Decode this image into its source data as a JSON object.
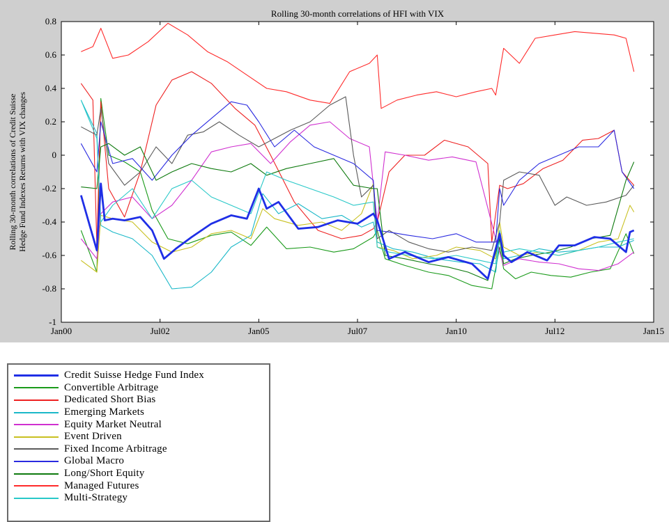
{
  "chart_data": {
    "type": "line",
    "title": "Rolling 30-month correlations of HFI with VIX",
    "ylabel_lines": [
      "Rolling 30-month correlations of Credit Suisse",
      "Hedge Fund Indexes Returns with VIX changes"
    ],
    "xlabel": "",
    "xlim": [
      2000.0,
      2015.0
    ],
    "ylim": [
      -1.0,
      0.8
    ],
    "xticks": [
      {
        "value": 2000.0,
        "label": "Jan00"
      },
      {
        "value": 2002.5,
        "label": "Jul02"
      },
      {
        "value": 2005.0,
        "label": "Jan05"
      },
      {
        "value": 2007.5,
        "label": "Jul07"
      },
      {
        "value": 2010.0,
        "label": "Jan10"
      },
      {
        "value": 2012.5,
        "label": "Jul12"
      },
      {
        "value": 2015.0,
        "label": "Jan15"
      }
    ],
    "yticks": [
      {
        "value": -1.0,
        "label": "-1"
      },
      {
        "value": -0.8,
        "label": "-0.8"
      },
      {
        "value": -0.6,
        "label": "-0.6"
      },
      {
        "value": -0.4,
        "label": "-0.4"
      },
      {
        "value": -0.2,
        "label": "-0.2"
      },
      {
        "value": 0.0,
        "label": "0"
      },
      {
        "value": 0.2,
        "label": "0.2"
      },
      {
        "value": 0.4,
        "label": "0.4"
      },
      {
        "value": 0.6,
        "label": "0.6"
      },
      {
        "value": 0.8,
        "label": "0.8"
      }
    ],
    "grid": false,
    "legend_position": "below",
    "series": [
      {
        "name": "Credit Suisse Hedge Fund Index",
        "color": "#1f2fe6",
        "bold": true,
        "x": [
          2000.5,
          2000.9,
          2001.0,
          2001.1,
          2001.3,
          2001.6,
          2002.0,
          2002.3,
          2002.6,
          2002.9,
          2003.3,
          2003.8,
          2004.3,
          2004.7,
          2005.0,
          2005.2,
          2005.5,
          2006.0,
          2006.5,
          2007.0,
          2007.5,
          2007.9,
          2008.0,
          2008.3,
          2008.7,
          2009.3,
          2009.8,
          2010.4,
          2010.8,
          2011.1,
          2011.2,
          2011.4,
          2011.8,
          2012.3,
          2012.6,
          2013.0,
          2013.5,
          2013.9,
          2014.3,
          2014.4,
          2014.5
        ],
        "y": [
          -0.24,
          -0.57,
          -0.17,
          -0.39,
          -0.38,
          -0.39,
          -0.37,
          -0.45,
          -0.62,
          -0.56,
          -0.49,
          -0.41,
          -0.36,
          -0.38,
          -0.2,
          -0.32,
          -0.28,
          -0.44,
          -0.43,
          -0.39,
          -0.41,
          -0.35,
          -0.39,
          -0.62,
          -0.58,
          -0.64,
          -0.61,
          -0.65,
          -0.74,
          -0.47,
          -0.6,
          -0.64,
          -0.58,
          -0.63,
          -0.54,
          -0.54,
          -0.49,
          -0.5,
          -0.58,
          -0.46,
          -0.45
        ]
      },
      {
        "name": "Convertible Arbitrage",
        "color": "#1a9a1a",
        "x": [
          2000.5,
          2000.9,
          2001.0,
          2001.2,
          2001.6,
          2002.0,
          2002.3,
          2002.7,
          2003.2,
          2003.8,
          2004.3,
          2004.8,
          2005.2,
          2005.7,
          2006.3,
          2006.9,
          2007.4,
          2007.9,
          2008.0,
          2008.2,
          2008.7,
          2009.3,
          2009.8,
          2010.4,
          2010.9,
          2011.1,
          2011.2,
          2011.5,
          2011.9,
          2012.4,
          2012.9,
          2013.4,
          2013.9,
          2014.3,
          2014.5
        ],
        "y": [
          -0.45,
          -0.7,
          0.34,
          0.0,
          -0.04,
          -0.1,
          -0.33,
          -0.5,
          -0.53,
          -0.48,
          -0.46,
          -0.54,
          -0.43,
          -0.56,
          -0.55,
          -0.58,
          -0.56,
          -0.49,
          -0.45,
          -0.62,
          -0.66,
          -0.7,
          -0.72,
          -0.78,
          -0.8,
          -0.55,
          -0.68,
          -0.74,
          -0.7,
          -0.72,
          -0.73,
          -0.7,
          -0.68,
          -0.47,
          -0.59
        ]
      },
      {
        "name": "Dedicated Short Bias",
        "color": "#ee2020",
        "x": [
          2000.5,
          2000.8,
          2000.9,
          2001.0,
          2001.2,
          2001.6,
          2002.0,
          2002.4,
          2002.8,
          2003.3,
          2003.8,
          2004.4,
          2004.9,
          2005.3,
          2005.9,
          2006.5,
          2007.1,
          2007.6,
          2007.9,
          2008.0,
          2008.3,
          2008.7,
          2009.2,
          2009.7,
          2010.3,
          2010.8,
          2010.9,
          2011.1,
          2011.3,
          2011.7,
          2012.2,
          2012.7,
          2013.2,
          2013.6,
          2014.0,
          2014.2,
          2014.5
        ],
        "y": [
          0.43,
          0.33,
          -0.55,
          0.32,
          -0.2,
          -0.37,
          -0.1,
          0.3,
          0.45,
          0.5,
          0.43,
          0.28,
          0.18,
          0.0,
          -0.28,
          -0.45,
          -0.5,
          -0.48,
          -0.44,
          -0.4,
          -0.1,
          0.0,
          0.0,
          0.09,
          0.05,
          -0.05,
          -0.52,
          -0.18,
          -0.2,
          -0.17,
          -0.08,
          -0.03,
          0.09,
          0.1,
          0.15,
          -0.1,
          -0.18
        ]
      },
      {
        "name": "Emerging Markets",
        "color": "#1ab8c8",
        "x": [
          2000.5,
          2000.9,
          2001.0,
          2001.3,
          2001.8,
          2002.3,
          2002.8,
          2003.3,
          2003.8,
          2004.3,
          2004.8,
          2005.1,
          2005.5,
          2006.0,
          2006.6,
          2007.1,
          2007.6,
          2007.9,
          2008.0,
          2008.4,
          2008.9,
          2009.5,
          2010.1,
          2010.6,
          2011.0,
          2011.1,
          2011.2,
          2011.6,
          2012.1,
          2012.6,
          2013.1,
          2013.6,
          2014.1,
          2014.5
        ],
        "y": [
          0.33,
          0.13,
          -0.42,
          -0.46,
          -0.5,
          -0.6,
          -0.8,
          -0.79,
          -0.7,
          -0.55,
          -0.48,
          -0.23,
          -0.35,
          -0.29,
          -0.38,
          -0.36,
          -0.43,
          -0.4,
          -0.52,
          -0.56,
          -0.58,
          -0.62,
          -0.64,
          -0.65,
          -0.7,
          -0.5,
          -0.62,
          -0.6,
          -0.56,
          -0.58,
          -0.57,
          -0.55,
          -0.55,
          -0.51
        ]
      },
      {
        "name": "Equity Market Neutral",
        "color": "#d030d0",
        "x": [
          2000.5,
          2000.9,
          2001.0,
          2001.3,
          2001.8,
          2002.3,
          2002.8,
          2003.3,
          2003.8,
          2004.3,
          2004.8,
          2005.3,
          2005.8,
          2006.3,
          2006.8,
          2007.3,
          2007.8,
          2008.0,
          2008.2,
          2008.7,
          2009.3,
          2009.9,
          2010.5,
          2011.0,
          2011.1,
          2011.2,
          2011.6,
          2012.1,
          2012.6,
          2013.1,
          2013.6,
          2014.1,
          2014.5
        ],
        "y": [
          -0.5,
          -0.62,
          -0.35,
          -0.28,
          -0.25,
          -0.38,
          -0.3,
          -0.15,
          0.02,
          0.05,
          0.07,
          -0.05,
          0.08,
          0.18,
          0.2,
          0.1,
          0.05,
          -0.4,
          0.02,
          0.0,
          -0.03,
          -0.01,
          -0.04,
          -0.5,
          -0.58,
          -0.66,
          -0.62,
          -0.64,
          -0.65,
          -0.68,
          -0.69,
          -0.65,
          -0.58
        ]
      },
      {
        "name": "Event Driven",
        "color": "#c8c020",
        "x": [
          2000.5,
          2000.9,
          2001.0,
          2001.3,
          2001.8,
          2002.3,
          2002.8,
          2003.3,
          2003.8,
          2004.3,
          2004.8,
          2005.1,
          2005.4,
          2006.0,
          2006.6,
          2007.1,
          2007.6,
          2007.9,
          2008.0,
          2008.4,
          2008.9,
          2009.5,
          2010.0,
          2010.6,
          2011.0,
          2011.1,
          2011.2,
          2011.6,
          2012.1,
          2012.6,
          2013.1,
          2013.6,
          2014.1,
          2014.4,
          2014.5
        ],
        "y": [
          -0.63,
          -0.7,
          -0.36,
          -0.38,
          -0.4,
          -0.52,
          -0.58,
          -0.55,
          -0.47,
          -0.45,
          -0.5,
          -0.32,
          -0.38,
          -0.42,
          -0.4,
          -0.45,
          -0.35,
          -0.17,
          -0.55,
          -0.57,
          -0.62,
          -0.6,
          -0.55,
          -0.57,
          -0.62,
          -0.4,
          -0.55,
          -0.6,
          -0.58,
          -0.6,
          -0.57,
          -0.52,
          -0.5,
          -0.3,
          -0.34
        ]
      },
      {
        "name": "Fixed Income Arbitrage",
        "color": "#5a5a5a",
        "x": [
          2000.5,
          2000.9,
          2001.0,
          2001.2,
          2001.6,
          2002.0,
          2002.4,
          2002.8,
          2003.2,
          2003.6,
          2004.0,
          2004.5,
          2005.0,
          2005.4,
          2005.8,
          2006.3,
          2006.8,
          2007.2,
          2007.4,
          2007.6,
          2007.9,
          2008.0,
          2008.3,
          2008.8,
          2009.3,
          2009.8,
          2010.4,
          2010.9,
          2011.1,
          2011.2,
          2011.6,
          2012.1,
          2012.5,
          2012.8,
          2013.3,
          2013.8,
          2014.3,
          2014.5
        ],
        "y": [
          0.17,
          0.12,
          0.28,
          -0.05,
          -0.18,
          -0.1,
          0.05,
          -0.05,
          0.12,
          0.14,
          0.2,
          0.12,
          0.05,
          0.1,
          0.15,
          0.2,
          0.3,
          0.35,
          0.0,
          -0.25,
          -0.18,
          -0.5,
          -0.45,
          -0.52,
          -0.56,
          -0.58,
          -0.55,
          -0.57,
          -0.4,
          -0.15,
          -0.1,
          -0.12,
          -0.3,
          -0.25,
          -0.3,
          -0.28,
          -0.24,
          -0.18
        ]
      },
      {
        "name": "Global Macro",
        "color": "#2a2ae0",
        "x": [
          2000.5,
          2000.9,
          2001.0,
          2001.3,
          2001.8,
          2002.3,
          2002.8,
          2003.3,
          2003.8,
          2004.3,
          2004.7,
          2005.0,
          2005.4,
          2005.9,
          2006.4,
          2006.9,
          2007.4,
          2007.9,
          2008.0,
          2008.3,
          2008.8,
          2009.4,
          2010.0,
          2010.5,
          2011.0,
          2011.1,
          2011.2,
          2011.6,
          2012.1,
          2012.6,
          2013.1,
          2013.6,
          2014.0,
          2014.2,
          2014.5
        ],
        "y": [
          0.07,
          -0.1,
          0.2,
          -0.05,
          -0.02,
          -0.15,
          0.0,
          0.12,
          0.22,
          0.32,
          0.3,
          0.2,
          0.05,
          0.15,
          0.05,
          0.0,
          -0.05,
          -0.15,
          -0.45,
          -0.46,
          -0.48,
          -0.5,
          -0.47,
          -0.52,
          -0.52,
          -0.2,
          -0.3,
          -0.15,
          -0.05,
          0.0,
          0.05,
          0.05,
          0.15,
          -0.1,
          -0.2
        ]
      },
      {
        "name": "Long/Short Equity",
        "color": "#0e7a0e",
        "x": [
          2000.5,
          2000.9,
          2001.0,
          2001.2,
          2001.6,
          2002.0,
          2002.4,
          2002.8,
          2003.3,
          2003.8,
          2004.3,
          2004.8,
          2005.2,
          2005.7,
          2006.3,
          2006.9,
          2007.4,
          2007.9,
          2008.0,
          2008.2,
          2008.7,
          2009.3,
          2009.8,
          2010.3,
          2010.8,
          2011.1,
          2011.2,
          2011.5,
          2011.9,
          2012.4,
          2012.9,
          2013.4,
          2013.9,
          2014.3,
          2014.5
        ],
        "y": [
          -0.19,
          -0.2,
          0.05,
          0.07,
          0.0,
          0.05,
          -0.15,
          -0.1,
          -0.05,
          -0.08,
          -0.1,
          -0.05,
          -0.12,
          -0.08,
          -0.05,
          -0.02,
          -0.18,
          -0.2,
          -0.2,
          -0.6,
          -0.62,
          -0.65,
          -0.67,
          -0.7,
          -0.75,
          -0.5,
          -0.65,
          -0.62,
          -0.6,
          -0.58,
          -0.55,
          -0.5,
          -0.48,
          -0.15,
          -0.04
        ]
      },
      {
        "name": "Managed Futures",
        "color": "#ff2a2a",
        "x": [
          2000.5,
          2000.8,
          2001.0,
          2001.3,
          2001.7,
          2002.2,
          2002.7,
          2003.2,
          2003.7,
          2004.2,
          2004.7,
          2005.2,
          2005.7,
          2006.3,
          2006.8,
          2007.3,
          2007.8,
          2008.0,
          2008.1,
          2008.5,
          2009.0,
          2009.5,
          2010.0,
          2010.5,
          2010.9,
          2011.0,
          2011.2,
          2011.6,
          2012.0,
          2012.5,
          2013.0,
          2013.5,
          2014.0,
          2014.3,
          2014.5
        ],
        "y": [
          0.62,
          0.65,
          0.76,
          0.58,
          0.6,
          0.68,
          0.79,
          0.72,
          0.62,
          0.56,
          0.48,
          0.4,
          0.38,
          0.33,
          0.31,
          0.5,
          0.55,
          0.6,
          0.28,
          0.33,
          0.36,
          0.38,
          0.35,
          0.38,
          0.4,
          0.36,
          0.64,
          0.55,
          0.7,
          0.72,
          0.74,
          0.73,
          0.72,
          0.7,
          0.5
        ]
      },
      {
        "name": "Multi-Strategy",
        "color": "#28c8c8",
        "x": [
          2000.5,
          2000.9,
          2001.0,
          2001.3,
          2001.8,
          2002.3,
          2002.8,
          2003.3,
          2003.8,
          2004.3,
          2004.8,
          2005.2,
          2005.7,
          2006.3,
          2006.9,
          2007.4,
          2007.9,
          2008.0,
          2008.3,
          2008.8,
          2009.4,
          2010.0,
          2010.6,
          2011.0,
          2011.1,
          2011.2,
          2011.6,
          2012.1,
          2012.6,
          2013.1,
          2013.6,
          2014.1,
          2014.5
        ],
        "y": [
          0.33,
          0.1,
          -0.4,
          -0.3,
          -0.2,
          -0.38,
          -0.2,
          -0.15,
          -0.25,
          -0.3,
          -0.35,
          -0.1,
          -0.15,
          -0.2,
          -0.25,
          -0.3,
          -0.28,
          -0.55,
          -0.58,
          -0.6,
          -0.62,
          -0.6,
          -0.63,
          -0.65,
          -0.45,
          -0.58,
          -0.56,
          -0.58,
          -0.6,
          -0.57,
          -0.55,
          -0.52,
          -0.5
        ]
      }
    ]
  }
}
